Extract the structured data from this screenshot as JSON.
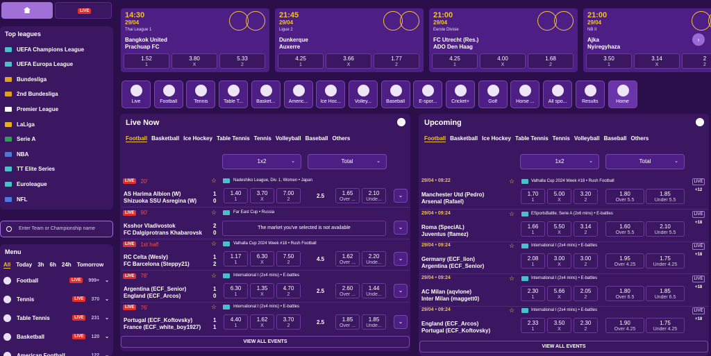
{
  "topbar": {
    "home_icon": "home-icon",
    "live_label": "LIVE"
  },
  "top_leagues": {
    "title": "Top leagues",
    "items": [
      {
        "label": "UEFA Champions League",
        "flag": "#4ac0c8"
      },
      {
        "label": "UEFA Europa League",
        "flag": "#4ac0c8"
      },
      {
        "label": "Bundesliga",
        "flag": "#e0a020"
      },
      {
        "label": "2nd Bundesliga",
        "flag": "#e0a020"
      },
      {
        "label": "Premier League",
        "flag": "#ffffff"
      },
      {
        "label": "LaLiga",
        "flag": "#e8b020"
      },
      {
        "label": "Serie A",
        "flag": "#2aa050"
      },
      {
        "label": "NBA",
        "flag": "#4a7ae0"
      },
      {
        "label": "TT Elite Series",
        "flag": "#4ac0c8"
      },
      {
        "label": "Euroleague",
        "flag": "#4ac0c8"
      },
      {
        "label": "NFL",
        "flag": "#4a7ae0"
      }
    ]
  },
  "search": {
    "placeholder": "Enter Team or Championship name"
  },
  "menu": {
    "title": "Menu",
    "filters": [
      "All",
      "Today",
      "3h",
      "6h",
      "24h",
      "Tomorrow"
    ],
    "items": [
      {
        "label": "Football",
        "live": "LIVE",
        "count": "999+"
      },
      {
        "label": "Tennis",
        "live": "LIVE",
        "count": "370"
      },
      {
        "label": "Table Tennis",
        "live": "LIVE",
        "count": "231"
      },
      {
        "label": "Basketball",
        "live": "LIVE",
        "count": "120"
      },
      {
        "label": "American Football",
        "live": "",
        "count": "122"
      }
    ]
  },
  "top_matches": [
    {
      "time": "14:30",
      "date": "29/04",
      "league": "Thai League 1",
      "team1": "Bangkok United",
      "team2": "Prachuap FC",
      "odds": [
        {
          "v": "1.52",
          "l": "1"
        },
        {
          "v": "3.80",
          "l": "X"
        },
        {
          "v": "5.33",
          "l": "2"
        }
      ]
    },
    {
      "time": "21:45",
      "date": "29/04",
      "league": "Ligue 2",
      "team1": "Dunkerque",
      "team2": "Auxerre",
      "odds": [
        {
          "v": "4.25",
          "l": "1"
        },
        {
          "v": "3.66",
          "l": "X"
        },
        {
          "v": "1.77",
          "l": "2"
        }
      ]
    },
    {
      "time": "21:00",
      "date": "29/04",
      "league": "Eerste Divisie",
      "team1": "FC Utrecht (Res.)",
      "team2": "ADO Den Haag",
      "odds": [
        {
          "v": "4.25",
          "l": "1"
        },
        {
          "v": "4.00",
          "l": "X"
        },
        {
          "v": "1.68",
          "l": "2"
        }
      ]
    },
    {
      "time": "21:00",
      "date": "29/04",
      "league": "NB II",
      "team1": "Ajka",
      "team2": "Nyiregyhaza",
      "odds": [
        {
          "v": "3.50",
          "l": "1"
        },
        {
          "v": "3.14",
          "l": "X"
        },
        {
          "v": "2",
          "l": "2"
        }
      ]
    }
  ],
  "sports": [
    {
      "label": "Live",
      "icon": "play-icon"
    },
    {
      "label": "Football",
      "icon": "football-icon"
    },
    {
      "label": "Tennis",
      "icon": "tennis-icon"
    },
    {
      "label": "Table T...",
      "icon": "table-tennis-icon"
    },
    {
      "label": "Basket...",
      "icon": "basketball-icon"
    },
    {
      "label": "Americ...",
      "icon": "american-football-icon"
    },
    {
      "label": "Ice Hoc...",
      "icon": "ice-hockey-icon"
    },
    {
      "label": "Volley...",
      "icon": "volleyball-icon"
    },
    {
      "label": "Baseball",
      "icon": "baseball-icon"
    },
    {
      "label": "E-spor...",
      "icon": "gamepad-icon"
    },
    {
      "label": "Cricket+",
      "icon": "cricket-icon"
    },
    {
      "label": "Golf",
      "icon": "golf-icon"
    },
    {
      "label": "Horse ...",
      "icon": "horse-icon"
    },
    {
      "label": "All spo...",
      "icon": "trophy-icon"
    },
    {
      "label": "Results",
      "icon": "results-icon"
    },
    {
      "label": "Home",
      "icon": "home-icon"
    }
  ],
  "live_now": {
    "title": "Live Now",
    "tabs": [
      "Football",
      "Basketball",
      "Ice Hockey",
      "Table Tennis",
      "Tennis",
      "Volleyball",
      "Baseball",
      "Others"
    ],
    "select1": "1x2",
    "select2": "Total",
    "view_all": "VIEW ALL EVENTS",
    "events": [
      {
        "live": "LIVE",
        "status": "20'",
        "league": "Nadeshiko League, Div. 1, Women • Japan",
        "team1": "AS Harima Albion (W)",
        "team2": "Shizuoka SSU Asregina (W)",
        "s1": "1",
        "s2": "0",
        "odds": [
          "1.40",
          "3.70",
          "7.00"
        ],
        "line": "2.5",
        "over": "1.65",
        "under": "2.10",
        "over_l": "Over ...",
        "under_l": "Unde...",
        "unavailable": ""
      },
      {
        "live": "LIVE",
        "status": "90'",
        "league": "Far East Cup • Russia",
        "team1": "Ksshor Vladivostok",
        "team2": "FC Dalgiprotrans Khabarovsk",
        "s1": "2",
        "s2": "0",
        "odds": [],
        "line": "",
        "over": "",
        "under": "",
        "over_l": "",
        "under_l": "",
        "unavailable": "The market you've selected is not available"
      },
      {
        "live": "LIVE",
        "status": "1st half",
        "league": "Valhalla Cup 2024 Week #18 • Rush Football",
        "team1": "RC Celta (Wesly)",
        "team2": "FC Barcelona (Steppy21)",
        "s1": "1",
        "s2": "2",
        "odds": [
          "1.17",
          "6.30",
          "7.50"
        ],
        "line": "4.5",
        "over": "1.62",
        "under": "2.20",
        "over_l": "Over ...",
        "under_l": "Unde...",
        "unavailable": ""
      },
      {
        "live": "LIVE",
        "status": "78'",
        "league": "International I (2x4 mins) • E-battles",
        "team1": "Argentina (ECF_Senior)",
        "team2": "England (ECF_Arcos)",
        "s1": "1",
        "s2": "0",
        "odds": [
          "6.30",
          "1.35",
          "4.70"
        ],
        "line": "2.5",
        "over": "2.60",
        "under": "1.44",
        "over_l": "Over ...",
        "under_l": "Unde...",
        "unavailable": ""
      },
      {
        "live": "LIVE",
        "status": "76'",
        "league": "International I (2x4 mins) • E-battles",
        "team1": "Portugal (ECF_Koftovsky)",
        "team2": "France (ECF_white_boy1927)",
        "s1": "1",
        "s2": "1",
        "odds": [
          "4.40",
          "1.62",
          "3.70"
        ],
        "line": "2.5",
        "over": "1.85",
        "under": "1.85",
        "over_l": "Over ...",
        "under_l": "Unde...",
        "unavailable": ""
      }
    ]
  },
  "upcoming": {
    "title": "Upcoming",
    "tabs": [
      "Football",
      "Basketball",
      "Ice Hockey",
      "Table Tennis",
      "Tennis",
      "Volleyball",
      "Baseball",
      "Others"
    ],
    "select1": "1x2",
    "select2": "Total",
    "view_all": "VIEW ALL EVENTS",
    "events": [
      {
        "time": "29/04 • 09:22",
        "league": "Valhalla Cup 2024 Week #18 • Rush Football",
        "team1": "Manchester Utd (Pedro)",
        "team2": "Arsenal (Rafael)",
        "odds": [
          "1.70",
          "5.00",
          "3.20"
        ],
        "over": "1.80",
        "under": "1.85",
        "over_l": "Over 5.5",
        "under_l": "Under 5.5",
        "plus": "+12"
      },
      {
        "time": "29/04 • 09:24",
        "league": "ESportsBattle. Serie A (2x6 mins) • E-battles",
        "team1": "Roma (SpeciAL)",
        "team2": "Juventus (flamez)",
        "odds": [
          "1.66",
          "5.50",
          "3.14"
        ],
        "over": "1.60",
        "under": "2.10",
        "over_l": "Over 5.5",
        "under_l": "Under 5.5",
        "plus": "+18"
      },
      {
        "time": "29/04 • 09:24",
        "league": "International I (2x4 mins) • E-battles",
        "team1": "Germany (ECF_lion)",
        "team2": "Argentina (ECF_Senior)",
        "odds": [
          "2.08",
          "3.00",
          "3.00"
        ],
        "over": "1.95",
        "under": "1.75",
        "over_l": "Over 4.25",
        "under_l": "Under 4.25",
        "plus": "+18"
      },
      {
        "time": "29/04 • 09:24",
        "league": "International I (2x4 mins) • E-battles",
        "team1": "AC Milan (aqvlone)",
        "team2": "Inter Milan (maggett0)",
        "odds": [
          "2.30",
          "5.66",
          "2.05"
        ],
        "over": "1.80",
        "under": "1.85",
        "over_l": "Over 6.5",
        "under_l": "Under 6.5",
        "plus": "+18"
      },
      {
        "time": "29/04 • 09:24",
        "league": "International I (2x4 mins) • E-battles",
        "team1": "England (ECF_Arcos)",
        "team2": "Portugal (ECF_Koftovsky)",
        "odds": [
          "2.33",
          "3.50",
          "2.30"
        ],
        "over": "1.90",
        "under": "1.75",
        "over_l": "Over 4.25",
        "under_l": "Under 4.25",
        "plus": "+18"
      }
    ]
  },
  "labels": {
    "one": "1",
    "x": "X",
    "two": "2",
    "live_box": "LIVE"
  }
}
